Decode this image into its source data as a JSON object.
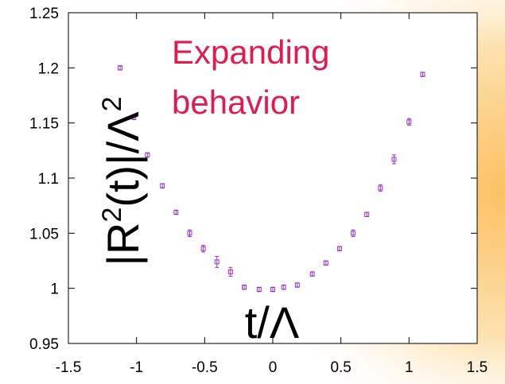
{
  "chart_data": {
    "type": "scatter",
    "xlabel": "t/Λ",
    "ylabel": "|R²(t)|/Λ²",
    "ylabel_parts": {
      "pre": "|R",
      "sup1": "2",
      "mid": "(t)|/Λ",
      "sup2": "2"
    },
    "annotation": [
      "Expanding",
      "behavior"
    ],
    "xlim": [
      -1.5,
      1.5
    ],
    "ylim": [
      0.95,
      1.25
    ],
    "xticks": [
      "-1.5",
      "-1",
      "-0.5",
      "0",
      "0.5",
      "1",
      "1.5"
    ],
    "yticks": [
      "0.95",
      "1",
      "1.05",
      "1.1",
      "1.15",
      "1.2",
      "1.25"
    ],
    "grid": false,
    "legend": "none",
    "series": [
      {
        "color": "#9933cc",
        "marker": "square-with-errorbar",
        "points": [
          {
            "x": -1.12,
            "y": 1.2,
            "err": 0.002
          },
          {
            "x": -1.02,
            "y": 1.155,
            "err": 0.002
          },
          {
            "x": -0.92,
            "y": 1.121,
            "err": 0.002
          },
          {
            "x": -0.81,
            "y": 1.093,
            "err": 0.002
          },
          {
            "x": -0.71,
            "y": 1.069,
            "err": 0.002
          },
          {
            "x": -0.61,
            "y": 1.05,
            "err": 0.003
          },
          {
            "x": -0.51,
            "y": 1.036,
            "err": 0.003
          },
          {
            "x": -0.41,
            "y": 1.024,
            "err": 0.005
          },
          {
            "x": -0.31,
            "y": 1.015,
            "err": 0.004
          },
          {
            "x": -0.21,
            "y": 1.001,
            "err": 0.002
          },
          {
            "x": -0.1,
            "y": 0.999,
            "err": 0.002
          },
          {
            "x": 0.0,
            "y": 0.999,
            "err": 0.002
          },
          {
            "x": 0.08,
            "y": 1.001,
            "err": 0.002
          },
          {
            "x": 0.18,
            "y": 1.003,
            "err": 0.002
          },
          {
            "x": 0.29,
            "y": 1.013,
            "err": 0.002
          },
          {
            "x": 0.39,
            "y": 1.023,
            "err": 0.002
          },
          {
            "x": 0.49,
            "y": 1.036,
            "err": 0.002
          },
          {
            "x": 0.59,
            "y": 1.05,
            "err": 0.003
          },
          {
            "x": 0.69,
            "y": 1.067,
            "err": 0.002
          },
          {
            "x": 0.79,
            "y": 1.091,
            "err": 0.003
          },
          {
            "x": 0.89,
            "y": 1.117,
            "err": 0.004
          },
          {
            "x": 1.0,
            "y": 1.151,
            "err": 0.003
          },
          {
            "x": 1.1,
            "y": 1.194,
            "err": 0.002
          }
        ]
      }
    ]
  }
}
